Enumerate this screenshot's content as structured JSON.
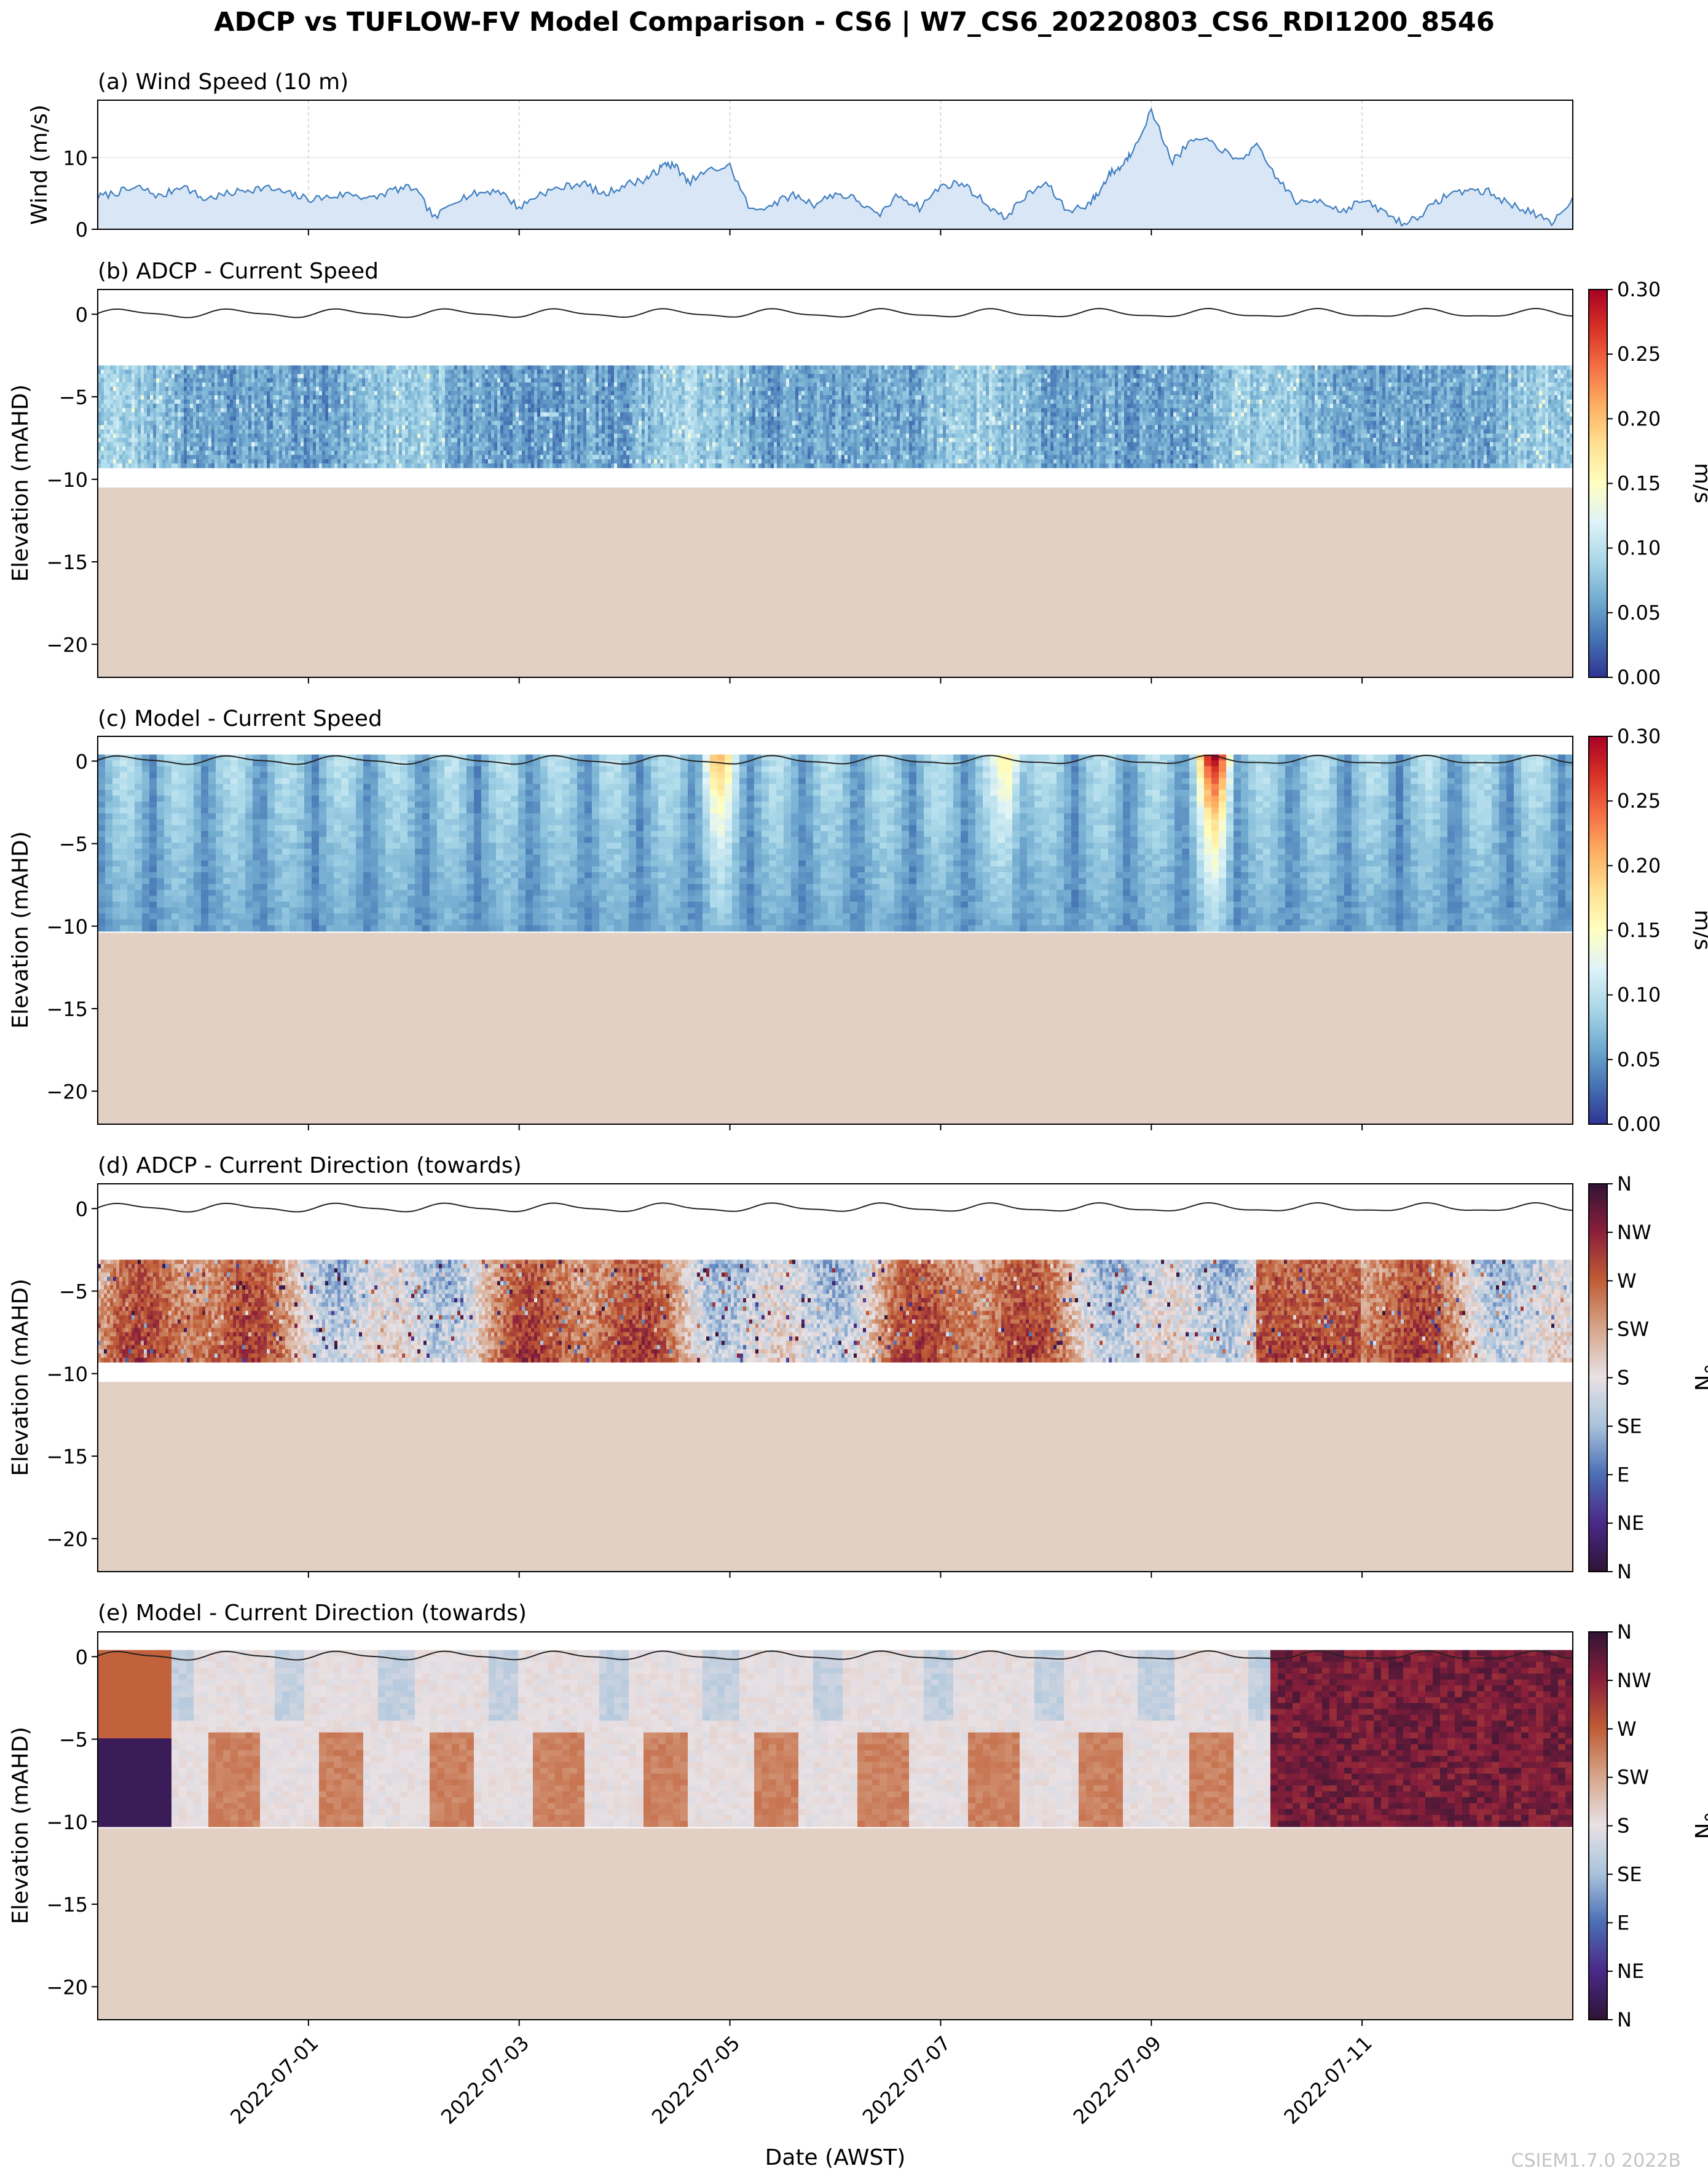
{
  "figure": {
    "title": "ADCP vs TUFLOW-FV Model Comparison - CS6 | W7_CS6_20220803_CS6_RDI1200_8546",
    "xlabel": "Date (AWST)",
    "watermark": "CSIEM1.7.0 2022B",
    "x_tick_labels": [
      "2022-07-01",
      "2022-07-03",
      "2022-07-05",
      "2022-07-07",
      "2022-07-09",
      "2022-07-11"
    ]
  },
  "colors": {
    "wind_line": "#3f7fc0",
    "wind_fill": "#d9e6f5",
    "seabed": "#e2d0c4",
    "grid": "#cccccc",
    "speed_colormap": [
      "#313695",
      "#4575b4",
      "#74add1",
      "#abd9e9",
      "#e0f3f8",
      "#ffffbf",
      "#fee090",
      "#fdae61",
      "#f46d43",
      "#d73027",
      "#a50026"
    ],
    "direction_colormap": [
      "#2f1436",
      "#4a2a8a",
      "#4c6fb5",
      "#a9c4dc",
      "#e9e1e4",
      "#d6a58a",
      "#c05c35",
      "#8a1f3a",
      "#2f1436"
    ]
  },
  "chart_data": [
    {
      "id": "a",
      "type": "area",
      "title": "(a) Wind Speed (10 m)",
      "ylabel": "Wind (m/s)",
      "x_unit": "days since 2022-06-29 00:00",
      "xlim": [
        "2022-06-29",
        "2022-07-13"
      ],
      "ylim": [
        0,
        18
      ],
      "yticks": [
        0,
        10
      ],
      "grid": true,
      "series": [
        {
          "x": [
            0,
            0.2,
            0.4,
            0.6,
            0.8,
            1.0,
            1.2,
            1.4,
            1.6,
            1.8,
            2.0,
            2.2,
            2.4,
            2.6,
            2.8,
            3.0,
            3.2,
            3.4,
            3.6,
            3.8,
            4.0,
            4.2,
            4.4,
            4.6,
            4.8,
            5.0,
            5.2,
            5.3,
            5.4,
            5.5,
            5.6,
            5.8,
            6.0,
            6.2,
            6.4,
            6.6,
            6.8,
            7.0,
            7.2,
            7.4,
            7.6,
            7.8,
            8.0,
            8.2,
            8.4,
            8.6,
            8.8,
            9.0,
            9.2,
            9.4,
            9.5,
            9.6,
            9.7,
            9.8,
            10.0,
            10.2,
            10.4,
            10.6,
            10.8,
            11.0,
            11.2,
            11.4,
            11.6,
            11.8,
            12.0,
            12.2,
            12.4,
            12.6,
            12.8,
            13.0,
            13.2,
            13.4,
            13.6,
            13.8,
            14.0
          ],
          "y": [
            4.5,
            5.2,
            5.8,
            4.5,
            6.2,
            4.2,
            4.8,
            5.5,
            5.8,
            5.0,
            4.2,
            4.5,
            5.0,
            4.2,
            5.5,
            5.8,
            1.5,
            4.2,
            5.0,
            5.5,
            3.0,
            5.0,
            5.8,
            6.5,
            4.8,
            6.2,
            7.0,
            8.0,
            9.2,
            8.6,
            6.5,
            8.2,
            8.8,
            2.5,
            3.5,
            4.8,
            3.5,
            5.0,
            4.2,
            1.8,
            4.8,
            3.0,
            6.0,
            6.5,
            4.0,
            1.5,
            4.5,
            6.5,
            2.5,
            3.5,
            5.0,
            7.8,
            8.5,
            10.5,
            16.5,
            9.5,
            12.5,
            12.0,
            9.5,
            11.5,
            7.0,
            3.5,
            4.2,
            2.5,
            4.0,
            2.5,
            0.7,
            2.5,
            4.8,
            5.5,
            5.2,
            3.5,
            2.5,
            0.6,
            4.5
          ]
        }
      ]
    },
    {
      "id": "b",
      "type": "heatmap",
      "title": "(b) ADCP - Current Speed",
      "ylabel": "Elevation (mAHD)",
      "yticks": [
        0,
        -5,
        -10,
        -15,
        -20
      ],
      "ylim": [
        -22,
        1.5
      ],
      "bins_top": -3.1,
      "bins_bottom": -9.3,
      "seabed": -10.5,
      "colorbar_label": "m/s",
      "colorbar_ticks": [
        "0.00",
        "0.05",
        "0.10",
        "0.15",
        "0.20",
        "0.25",
        "0.30"
      ],
      "clim": [
        0,
        0.3
      ],
      "typical_speed": [
        0.02,
        0.12
      ]
    },
    {
      "id": "c",
      "type": "heatmap",
      "title": "(c) Model - Current Speed",
      "ylabel": "Elevation (mAHD)",
      "yticks": [
        0,
        -5,
        -10,
        -15,
        -20
      ],
      "ylim": [
        -22,
        1.5
      ],
      "bins_top": 0,
      "bins_bottom": -10.3,
      "seabed": -10.4,
      "colorbar_label": "m/s",
      "colorbar_ticks": [
        "0.00",
        "0.05",
        "0.10",
        "0.15",
        "0.20",
        "0.25",
        "0.30"
      ],
      "clim": [
        0,
        0.3
      ],
      "peaks": [
        {
          "day": 10.6,
          "speed": 0.29
        },
        {
          "day": 5.9,
          "speed": 0.19
        },
        {
          "day": 8.65,
          "speed": 0.17
        }
      ]
    },
    {
      "id": "d",
      "type": "heatmap",
      "title": "(d) ADCP - Current Direction (towards)",
      "ylabel": "Elevation (mAHD)",
      "yticks": [
        0,
        -5,
        -10,
        -15,
        -20
      ],
      "ylim": [
        -22,
        1.5
      ],
      "bins_top": -3.1,
      "bins_bottom": -9.3,
      "seabed": -10.5,
      "colorbar_label": "°N",
      "colorbar_ticks": [
        "N",
        "NW",
        "W",
        "SW",
        "S",
        "SE",
        "E",
        "NE",
        "N"
      ]
    },
    {
      "id": "e",
      "type": "heatmap",
      "title": "(e) Model - Current Direction (towards)",
      "ylabel": "Elevation (mAHD)",
      "yticks": [
        0,
        -5,
        -10,
        -15,
        -20
      ],
      "ylim": [
        -22,
        1.5
      ],
      "bins_top": 0,
      "bins_bottom": -10.3,
      "seabed": -10.4,
      "colorbar_label": "°N",
      "colorbar_ticks": [
        "N",
        "NW",
        "W",
        "SW",
        "S",
        "SE",
        "E",
        "NE",
        "N"
      ]
    }
  ]
}
